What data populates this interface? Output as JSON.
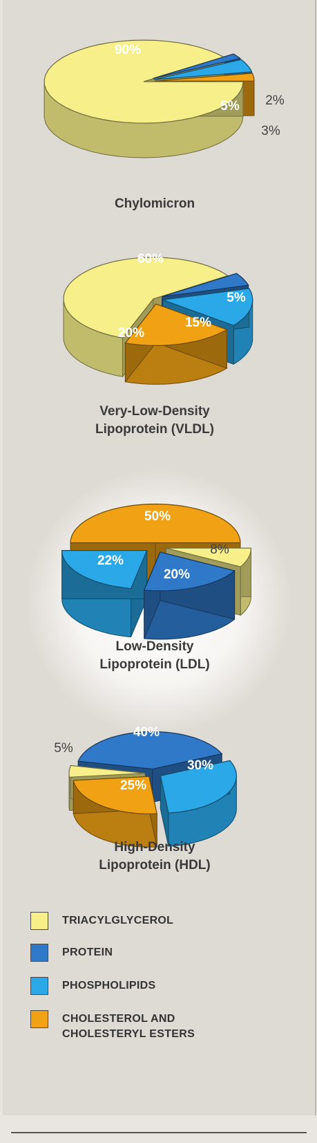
{
  "chart_data": [
    {
      "type": "pie",
      "title": "Chylomicron",
      "slices": [
        {
          "category": "triacylglycerol",
          "value": 90,
          "label": "90%"
        },
        {
          "category": "protein",
          "value": 2,
          "label": "2%"
        },
        {
          "category": "phospholipids",
          "value": 5,
          "label": "5%"
        },
        {
          "category": "cholesterol",
          "value": 3,
          "label": "3%"
        }
      ]
    },
    {
      "type": "pie",
      "title": "Very-Low-Density\nLipoprotein (VLDL)",
      "slices": [
        {
          "category": "triacylglycerol",
          "value": 60,
          "label": "60%"
        },
        {
          "category": "protein",
          "value": 5,
          "label": "5%"
        },
        {
          "category": "phospholipids",
          "value": 15,
          "label": "15%"
        },
        {
          "category": "cholesterol",
          "value": 20,
          "label": "20%"
        }
      ]
    },
    {
      "type": "pie",
      "title": "Low-Density\nLipoprotein (LDL)",
      "slices": [
        {
          "category": "cholesterol",
          "value": 50,
          "label": "50%"
        },
        {
          "category": "triacylglycerol",
          "value": 8,
          "label": "8%"
        },
        {
          "category": "protein",
          "value": 20,
          "label": "20%"
        },
        {
          "category": "phospholipids",
          "value": 22,
          "label": "22%"
        }
      ]
    },
    {
      "type": "pie",
      "title": "High-Density\nLipoprotein (HDL)",
      "slices": [
        {
          "category": "protein",
          "value": 40,
          "label": "40%"
        },
        {
          "category": "phospholipids",
          "value": 30,
          "label": "30%"
        },
        {
          "category": "cholesterol",
          "value": 25,
          "label": "25%"
        },
        {
          "category": "triacylglycerol",
          "value": 5,
          "label": "5%"
        }
      ]
    }
  ],
  "legend": [
    {
      "category": "triacylglycerol",
      "label": "TRIACYLGLYCEROL"
    },
    {
      "category": "protein",
      "label": "PROTEIN"
    },
    {
      "category": "phospholipids",
      "label": "PHOSPHOLIPIDS"
    },
    {
      "category": "cholesterol",
      "label": "CHOLESTEROL  AND\nCHOLESTERYL ESTERS"
    }
  ],
  "colors": {
    "triacylglycerol": "#f7f08a",
    "protein": "#2f79c8",
    "phospholipids": "#2aa8e8",
    "cholesterol": "#f0a214"
  }
}
